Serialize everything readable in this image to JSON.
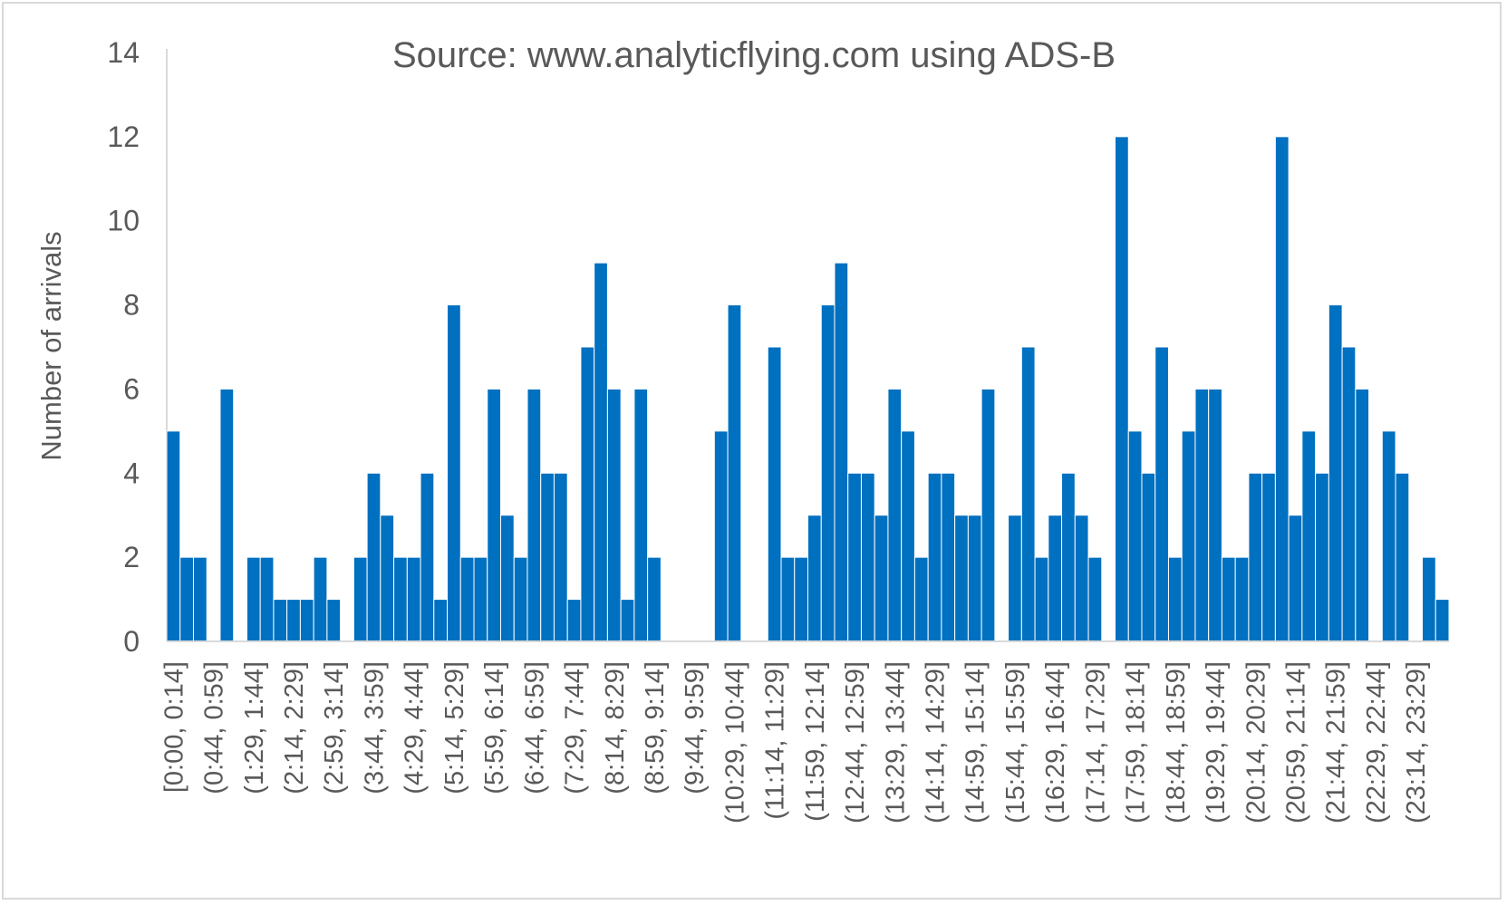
{
  "chart_data": {
    "type": "bar",
    "title": "Source: www.analyticflying.com using ADS-B",
    "ylabel": "Number of arrivals",
    "xlabel": "",
    "ylim": [
      0,
      14
    ],
    "yticks": [
      0,
      2,
      4,
      6,
      8,
      10,
      12,
      14
    ],
    "grid": false,
    "legend": "none",
    "bar_color": "#0070c0",
    "category_labels": [
      "[0:00, 0:14]",
      "(0:44, 0:59]",
      "(1:29, 1:44]",
      "(2:14, 2:29]",
      "(2:59, 3:14]",
      "(3:44, 3:59]",
      "(4:29, 4:44]",
      "(5:14, 5:29]",
      "(5:59, 6:14]",
      "(6:44, 6:59]",
      "(7:29, 7:44]",
      "(8:14, 8:29]",
      "(8:59, 9:14]",
      "(9:44, 9:59]",
      "(10:29, 10:44]",
      "(11:14, 11:29]",
      "(11:59, 12:14]",
      "(12:44, 12:59]",
      "(13:29, 13:44]",
      "(14:14, 14:29]",
      "(14:59, 15:14]",
      "(15:44, 15:59]",
      "(16:29, 16:44]",
      "(17:14, 17:29]",
      "(17:59, 18:14]",
      "(18:44, 18:59]",
      "(19:29, 19:44]",
      "(20:14, 20:29]",
      "(20:59, 21:14]",
      "(21:44, 21:59]",
      "(22:29, 22:44]",
      "(23:14, 23:29]"
    ],
    "values": [
      5,
      2,
      2,
      0,
      6,
      0,
      2,
      2,
      1,
      1,
      1,
      2,
      1,
      0,
      2,
      4,
      3,
      2,
      2,
      4,
      1,
      8,
      2,
      2,
      6,
      3,
      2,
      6,
      4,
      4,
      1,
      7,
      9,
      6,
      1,
      6,
      2,
      0,
      0,
      0,
      0,
      5,
      8,
      0,
      0,
      7,
      2,
      2,
      3,
      8,
      9,
      4,
      4,
      3,
      6,
      5,
      2,
      4,
      4,
      3,
      3,
      6,
      0,
      3,
      7,
      2,
      3,
      4,
      3,
      2,
      0,
      12,
      5,
      4,
      7,
      2,
      5,
      6,
      6,
      2,
      2,
      4,
      4,
      12,
      3,
      5,
      4,
      8,
      7,
      6,
      0,
      5,
      4,
      0,
      2,
      1
    ]
  }
}
